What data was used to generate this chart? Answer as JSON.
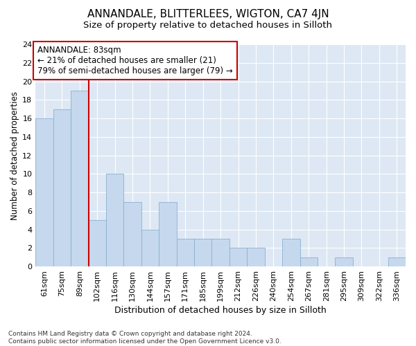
{
  "title": "ANNANDALE, BLITTERLEES, WIGTON, CA7 4JN",
  "subtitle": "Size of property relative to detached houses in Silloth",
  "xlabel": "Distribution of detached houses by size in Silloth",
  "ylabel": "Number of detached properties",
  "categories": [
    "61sqm",
    "75sqm",
    "89sqm",
    "102sqm",
    "116sqm",
    "130sqm",
    "144sqm",
    "157sqm",
    "171sqm",
    "185sqm",
    "199sqm",
    "212sqm",
    "226sqm",
    "240sqm",
    "254sqm",
    "267sqm",
    "281sqm",
    "295sqm",
    "309sqm",
    "322sqm",
    "336sqm"
  ],
  "values": [
    16,
    17,
    19,
    5,
    10,
    7,
    4,
    7,
    3,
    3,
    3,
    2,
    2,
    0,
    3,
    1,
    0,
    1,
    0,
    0,
    1
  ],
  "bar_color": "#c5d8ed",
  "bar_edge_color": "#8ab0d0",
  "vline_color": "#cc0000",
  "annotation_title": "ANNANDALE: 83sqm",
  "annotation_line1": "← 21% of detached houses are smaller (21)",
  "annotation_line2": "79% of semi-detached houses are larger (79) →",
  "annotation_box_color": "#ffffff",
  "annotation_box_edge": "#cc0000",
  "ylim": [
    0,
    24
  ],
  "yticks": [
    0,
    2,
    4,
    6,
    8,
    10,
    12,
    14,
    16,
    18,
    20,
    22,
    24
  ],
  "background_color": "#dde8f4",
  "footnote": "Contains HM Land Registry data © Crown copyright and database right 2024.\nContains public sector information licensed under the Open Government Licence v3.0.",
  "title_fontsize": 11,
  "subtitle_fontsize": 9.5,
  "xlabel_fontsize": 9,
  "ylabel_fontsize": 8.5,
  "annotation_fontsize": 8.5,
  "tick_fontsize": 8,
  "footnote_fontsize": 6.5
}
